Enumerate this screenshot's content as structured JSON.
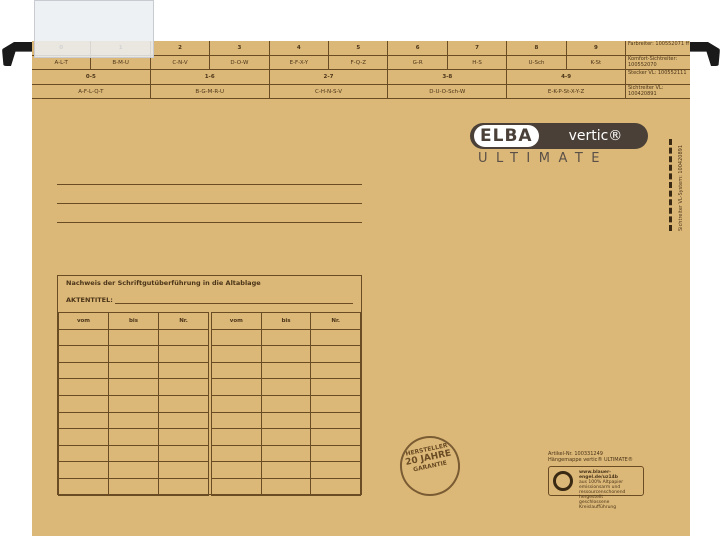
{
  "index_top": {
    "numbers": [
      "0",
      "1",
      "2",
      "3",
      "4",
      "5",
      "6",
      "7",
      "8",
      "9"
    ],
    "letters": [
      "A-L-T",
      "B-M-U",
      "C-N-V",
      "D-O-W",
      "E-F-X-Y",
      "F-Q-Z",
      "G-R",
      "H-S",
      "U-Sch",
      "K-St"
    ]
  },
  "index_bottom": {
    "numbers": [
      "0-5",
      "1-6",
      "2-7",
      "3-8",
      "4-9"
    ],
    "letters": [
      "A-F-L-Q-T",
      "B-G-M-R-U",
      "C-H-N-S-V",
      "D-U-O-Sch-W",
      "E-K-P-St-X-Y-Z"
    ]
  },
  "info": [
    "Farbreiter: 100552071 ff",
    "Komfort-Sichtreiter: 100552070",
    "Stecker VL: 100552111",
    "Sichtreiter VL: 100420891"
  ],
  "logo": {
    "brand": "ELBA",
    "product": "vertic®",
    "line": "ULTIMATE"
  },
  "form": {
    "title": "Nachweis der Schriftgutüberführung in die Altablage",
    "aktentitel": "AKTENTITEL:",
    "cols": [
      "vom",
      "bis",
      "Nr."
    ]
  },
  "stamp": {
    "top": "HERSTELLER",
    "middle": "20 JAHRE",
    "bottom": "GARANTIE"
  },
  "side_text": "Sichtreiter VL-System: 100420891",
  "article": {
    "nr": "Artikel-Nr. 100331249",
    "name": "Hängemappe vertic® ULTIMATE®"
  },
  "eco": {
    "url": "www.blauer-engel.de/uz14b",
    "items": [
      "aus 100% Altpapier",
      "emissionsarm und ressourcenschonend hergestellt",
      "geschlossene Kreislaufführung"
    ]
  },
  "colors": {
    "folder": "#dcb878",
    "line": "#6a4c24"
  }
}
